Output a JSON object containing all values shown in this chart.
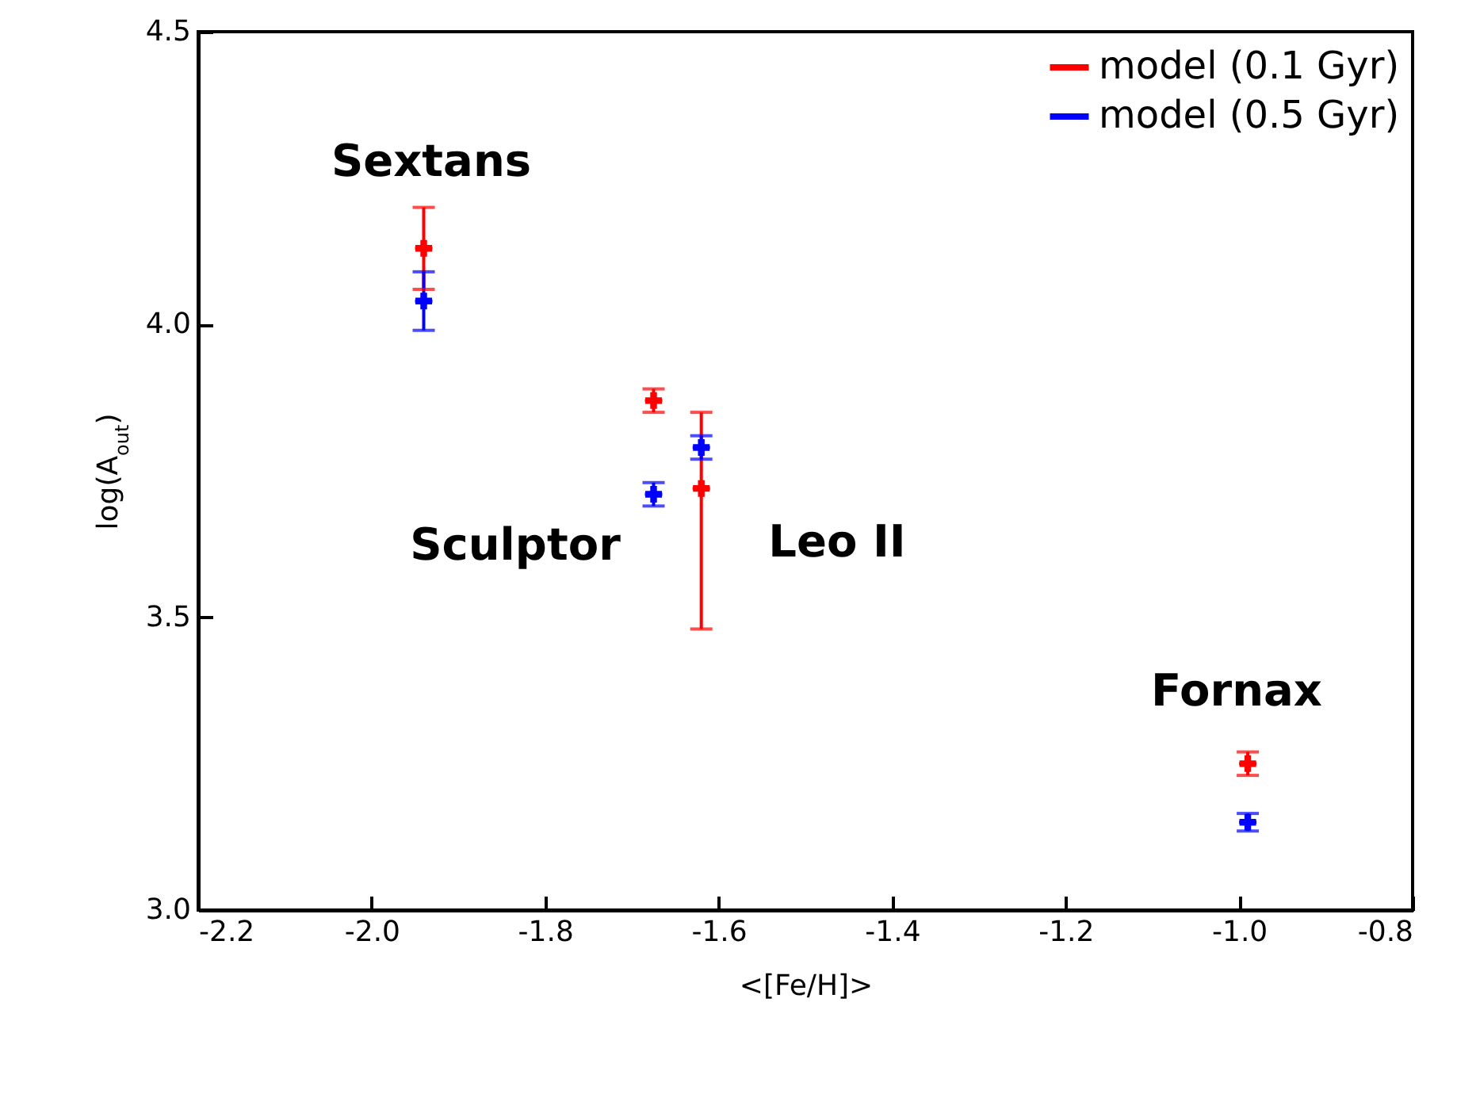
{
  "chart_data": {
    "type": "scatter",
    "xlabel": "<[Fe/H]>",
    "ylabel": "log(A$_{out}$)",
    "xlim": [
      -2.2,
      -0.8
    ],
    "xticks": [
      -2.2,
      {
        "value": -2.0,
        "label": "-2.0"
      },
      -1.8,
      -1.6,
      -1.4,
      -1.2,
      {
        "value": -1.0,
        "label": "-1.0"
      },
      -0.8
    ],
    "ylim": [
      3.0,
      4.5
    ],
    "yticks": [
      {
        "value": 3.0,
        "label": "3.0"
      },
      3.5,
      {
        "value": 4.0,
        "label": "4.0"
      },
      4.5
    ],
    "x": [
      -1.94,
      -1.675,
      -1.62,
      -0.99
    ],
    "series": [
      {
        "name": "model (0.1 Gyr)",
        "color": "#ff0000",
        "values": [
          4.13,
          3.87,
          3.72,
          3.25
        ],
        "errors": [
          0.07,
          0.02,
          [
            3.48,
            3.85
          ],
          0.02
        ],
        "xerrors": [
          0.01,
          0.01,
          0.01,
          0.01
        ]
      },
      {
        "name": "model (0.5 Gyr)",
        "color": "#0000ff",
        "values": [
          4.04,
          3.71,
          3.79,
          3.15
        ],
        "errors": [
          0.05,
          0.02,
          0.02,
          0.015
        ],
        "xerrors": [
          0.01,
          0.01,
          0.01,
          0.01
        ]
      }
    ],
    "marker": "cross",
    "legend": "top right",
    "annotations": [
      "Sextans",
      "Sculptor",
      "Leo II",
      "Fornax"
    ]
  }
}
